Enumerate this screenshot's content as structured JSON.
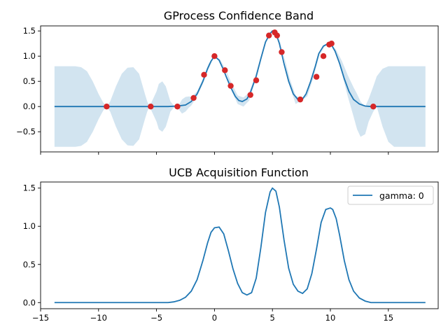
{
  "colors": {
    "line": "#1f77b4",
    "band": "#1f77b4",
    "points": "#d62728",
    "axis": "#000000",
    "background": "#ffffff"
  },
  "chart_data": [
    {
      "type": "area",
      "title": "GProcess Confidence Band",
      "xlabel": "",
      "ylabel": "",
      "xlim": [
        -15.0,
        19.3
      ],
      "ylim": [
        -0.9,
        1.6
      ],
      "xticks": [
        -15,
        -10,
        -5,
        0,
        5,
        10,
        15
      ],
      "xtick_labels_visible": false,
      "yticks": [
        -0.5,
        0.0,
        0.5,
        1.0,
        1.5
      ],
      "ytick_labels": [
        "−0.5",
        "0.0",
        "0.5",
        "1.0",
        "1.5"
      ],
      "grid": false,
      "mean": {
        "x": [
          -13.8,
          -10,
          -9.3,
          -8,
          -6,
          -5.6,
          -4,
          -3.2,
          -2.5,
          -2.0,
          -1.5,
          -1.0,
          -0.6,
          -0.3,
          0.0,
          0.4,
          0.8,
          1.0,
          1.4,
          1.8,
          2.1,
          2.4,
          2.8,
          3.1,
          3.6,
          4.0,
          4.4,
          4.8,
          5.0,
          5.3,
          5.6,
          6.0,
          6.4,
          6.8,
          7.2,
          7.6,
          7.9,
          8.3,
          8.7,
          9.0,
          9.4,
          9.8,
          10.1,
          10.4,
          10.8,
          11.2,
          11.6,
          12.0,
          12.5,
          13.0,
          13.5,
          14.0,
          16,
          18.2
        ],
        "y": [
          0.0,
          0.0,
          0.0,
          0.0,
          0.0,
          0.0,
          0.0,
          0.01,
          0.03,
          0.1,
          0.25,
          0.5,
          0.75,
          0.9,
          1.0,
          0.92,
          0.72,
          0.6,
          0.38,
          0.2,
          0.12,
          0.1,
          0.15,
          0.28,
          0.6,
          0.95,
          1.28,
          1.45,
          1.5,
          1.45,
          1.25,
          0.85,
          0.5,
          0.25,
          0.14,
          0.15,
          0.25,
          0.5,
          0.8,
          1.05,
          1.2,
          1.25,
          1.22,
          1.1,
          0.85,
          0.55,
          0.3,
          0.14,
          0.05,
          0.01,
          0.0,
          0.0,
          0.0,
          0.0
        ]
      },
      "band": {
        "x": [
          -13.8,
          -12.0,
          -11.5,
          -11.0,
          -10.5,
          -10.0,
          -9.6,
          -9.3,
          -9.0,
          -8.5,
          -8.0,
          -7.5,
          -7.0,
          -6.5,
          -6.0,
          -5.8,
          -5.6,
          -5.4,
          -5.0,
          -4.8,
          -4.5,
          -4.2,
          -4.0,
          -3.8,
          -3.5,
          -3.2,
          -3.0,
          -2.8,
          -2.5,
          -2.2,
          -2.0,
          -1.5,
          -1.0,
          -0.5,
          0.0,
          0.5,
          1.0,
          1.5,
          2.0,
          2.5,
          3.0,
          3.5,
          4.0,
          4.5,
          5.0,
          5.5,
          6.0,
          6.5,
          7.0,
          7.5,
          8.0,
          8.5,
          9.0,
          9.5,
          10.0,
          10.5,
          11.0,
          11.5,
          12.0,
          12.3,
          12.6,
          13.0,
          13.3,
          13.7,
          14.0,
          14.5,
          15.0,
          15.5,
          16.0,
          18.2
        ],
        "upper": [
          0.8,
          0.8,
          0.78,
          0.7,
          0.5,
          0.25,
          0.08,
          0.0,
          0.1,
          0.4,
          0.65,
          0.77,
          0.78,
          0.65,
          0.25,
          0.1,
          0.0,
          0.1,
          0.3,
          0.45,
          0.5,
          0.4,
          0.25,
          0.1,
          0.02,
          0.0,
          0.06,
          0.14,
          0.19,
          0.2,
          0.19,
          0.3,
          0.55,
          0.85,
          1.0,
          0.93,
          0.72,
          0.45,
          0.22,
          0.18,
          0.28,
          0.6,
          1.0,
          1.35,
          1.48,
          1.42,
          1.0,
          0.55,
          0.22,
          0.15,
          0.3,
          0.65,
          1.0,
          1.21,
          1.26,
          1.12,
          0.9,
          0.62,
          0.38,
          0.25,
          0.1,
          0.0,
          0.15,
          0.4,
          0.6,
          0.75,
          0.8,
          0.8,
          0.8,
          0.8
        ],
        "lower": [
          -0.8,
          -0.8,
          -0.78,
          -0.7,
          -0.5,
          -0.25,
          -0.08,
          0.0,
          -0.1,
          -0.4,
          -0.65,
          -0.77,
          -0.78,
          -0.65,
          -0.25,
          -0.1,
          0.0,
          -0.1,
          -0.3,
          -0.45,
          -0.5,
          -0.4,
          -0.25,
          -0.1,
          -0.02,
          0.0,
          -0.08,
          -0.14,
          -0.1,
          -0.02,
          0.02,
          0.2,
          0.45,
          0.75,
          1.0,
          0.9,
          0.68,
          0.3,
          0.05,
          0.0,
          0.12,
          0.5,
          0.9,
          1.3,
          1.48,
          1.4,
          0.95,
          0.4,
          0.05,
          0.12,
          0.2,
          0.55,
          0.98,
          1.19,
          1.24,
          1.05,
          0.65,
          0.2,
          -0.2,
          -0.45,
          -0.6,
          -0.55,
          -0.3,
          -0.1,
          0.0,
          -0.4,
          -0.7,
          -0.8,
          -0.8,
          -0.8
        ]
      },
      "observations": {
        "x": [
          -9.3,
          -5.5,
          -3.2,
          -1.8,
          -0.9,
          0.0,
          0.9,
          1.4,
          3.1,
          3.6,
          4.7,
          5.2,
          5.4,
          5.8,
          7.4,
          8.8,
          9.4,
          9.9,
          10.1,
          13.7
        ],
        "y": [
          0.0,
          0.0,
          0.0,
          0.17,
          0.63,
          1.0,
          0.72,
          0.41,
          0.23,
          0.52,
          1.41,
          1.47,
          1.41,
          1.08,
          0.14,
          0.59,
          1.0,
          1.23,
          1.25,
          0.0
        ]
      }
    },
    {
      "type": "line",
      "title": "UCB Acquisition Function",
      "xlabel": "",
      "ylabel": "",
      "xlim": [
        -15.0,
        19.3
      ],
      "ylim": [
        -0.08,
        1.58
      ],
      "xticks": [
        -15,
        -10,
        -5,
        0,
        5,
        10,
        15
      ],
      "xtick_labels": [
        "−15",
        "−10",
        "−5",
        "0",
        "5",
        "10",
        "15"
      ],
      "yticks": [
        0.0,
        0.5,
        1.0,
        1.5
      ],
      "ytick_labels": [
        "0.0",
        "0.5",
        "1.0",
        "1.5"
      ],
      "grid": false,
      "legend_position": "top-right",
      "series": [
        {
          "name": "gamma: 0",
          "x": [
            -13.8,
            -10,
            -6,
            -4.5,
            -4.0,
            -3.5,
            -3.0,
            -2.5,
            -2.0,
            -1.5,
            -1.0,
            -0.6,
            -0.3,
            0.0,
            0.4,
            0.8,
            1.2,
            1.6,
            2.0,
            2.4,
            2.8,
            3.2,
            3.6,
            4.0,
            4.4,
            4.8,
            5.0,
            5.3,
            5.6,
            6.0,
            6.4,
            6.8,
            7.2,
            7.6,
            8.0,
            8.4,
            8.8,
            9.2,
            9.6,
            10.0,
            10.2,
            10.5,
            10.8,
            11.2,
            11.6,
            12.0,
            12.5,
            13.0,
            13.5,
            14.0,
            16,
            18.2
          ],
          "y": [
            0.0,
            0.0,
            0.0,
            0.0,
            0.0,
            0.01,
            0.03,
            0.07,
            0.15,
            0.3,
            0.55,
            0.78,
            0.92,
            0.98,
            0.99,
            0.9,
            0.68,
            0.44,
            0.25,
            0.13,
            0.1,
            0.13,
            0.32,
            0.72,
            1.18,
            1.45,
            1.5,
            1.46,
            1.25,
            0.82,
            0.45,
            0.24,
            0.15,
            0.12,
            0.18,
            0.38,
            0.7,
            1.05,
            1.22,
            1.24,
            1.22,
            1.1,
            0.88,
            0.55,
            0.3,
            0.15,
            0.06,
            0.02,
            0.0,
            0.0,
            0.0,
            0.0
          ]
        }
      ]
    }
  ]
}
